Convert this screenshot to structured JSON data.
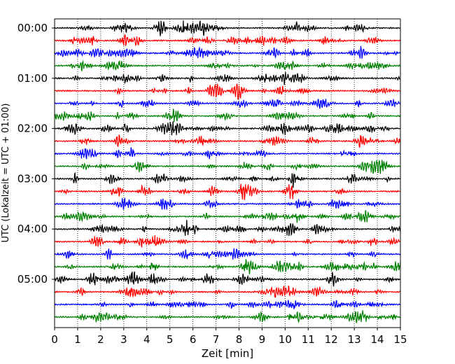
{
  "chart_data": {
    "type": "line",
    "subtype": "helicorder",
    "xlabel": "Zeit  [min]",
    "ylabel": "UTC (Lokalzeit = UTC + 01:00)",
    "xlim": [
      0,
      15
    ],
    "x_ticks": [
      0,
      1,
      2,
      3,
      4,
      5,
      6,
      7,
      8,
      9,
      10,
      11,
      12,
      13,
      14,
      15
    ],
    "x_tick_labels": [
      "0",
      "1",
      "2",
      "3",
      "4",
      "5",
      "6",
      "7",
      "8",
      "9",
      "10",
      "11",
      "12",
      "13",
      "14",
      "15"
    ],
    "grid": "vertical dotted lines at each minute",
    "row_minutes": 15,
    "rows": 24,
    "y_tick_labels": [
      "00:00",
      "01:00",
      "02:00",
      "03:00",
      "04:00",
      "05:00"
    ],
    "y_tick_rows": [
      0,
      4,
      8,
      12,
      16,
      20
    ],
    "trace_colors": [
      "#000000",
      "#ff0000",
      "#0000ff",
      "#008000"
    ]
  }
}
